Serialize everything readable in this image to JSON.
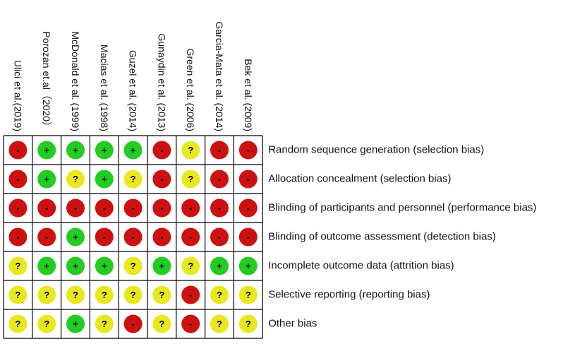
{
  "studies": [
    "Ulici et al.(2019)",
    "Porozan et.al（2020）",
    "McDonald et al. (1999)",
    "Macias et al. (1998)",
    "Guzel et al. (2014)",
    "Gunaydin et al. (2013)",
    "Green et al. (2006)",
    "Garcia-Mata et al. (2014)",
    "Bek et al. (2009)"
  ],
  "domains": [
    "Random sequence generation (selection bias)",
    "Allocation concealment (selection bias)",
    "Blinding of participants and personnel (performance bias)",
    "Blinding of outcome assessment (detection bias)",
    "Incomplete outcome data (attrition bias)",
    "Selective reporting (reporting bias)",
    "Other bias"
  ],
  "judgments": [
    [
      "-",
      "+",
      "+",
      "+",
      "+",
      "-",
      "?",
      "-",
      "-"
    ],
    [
      "-",
      "+",
      "?",
      "+",
      "?",
      "-",
      "?",
      "-",
      "-"
    ],
    [
      "-",
      "-",
      "-",
      "-",
      "-",
      "-",
      "-",
      "-",
      "-"
    ],
    [
      "-",
      "-",
      "+",
      "-",
      "-",
      "-",
      "-",
      "-",
      "-"
    ],
    [
      "?",
      "+",
      "+",
      "+",
      "?",
      "+",
      "?",
      "+",
      "+"
    ],
    [
      "?",
      "?",
      "?",
      "?",
      "?",
      "?",
      "-",
      "?",
      "?"
    ],
    [
      "?",
      "?",
      "+",
      "?",
      "-",
      "?",
      "-",
      "?",
      "?"
    ]
  ],
  "judgment_colors": {
    "+": "#22cc22",
    "?": "#e8e820",
    "-": "#cc1111"
  }
}
